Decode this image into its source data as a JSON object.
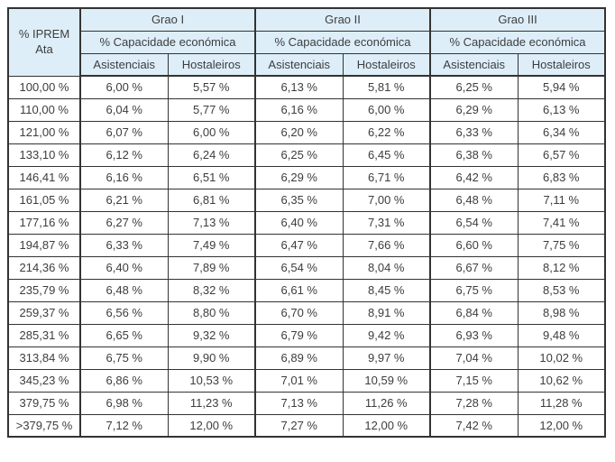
{
  "table": {
    "corner_header": "% IPREM\nAta",
    "groups": [
      {
        "label": "Grao I",
        "subheader": "% Capacidade económica"
      },
      {
        "label": "Grao II",
        "subheader": "% Capacidade económica"
      },
      {
        "label": "Grao III",
        "subheader": "% Capacidade económica"
      }
    ],
    "leaf_columns": [
      "Asistenciais",
      "Hostaleiros"
    ],
    "rows": [
      {
        "iprem": "100,00 %",
        "values": [
          "6,00 %",
          "5,57 %",
          "6,13 %",
          "5,81 %",
          "6,25 %",
          "5,94 %"
        ]
      },
      {
        "iprem": "110,00 %",
        "values": [
          "6,04 %",
          "5,77 %",
          "6,16 %",
          "6,00 %",
          "6,29 %",
          "6,13 %"
        ]
      },
      {
        "iprem": "121,00 %",
        "values": [
          "6,07 %",
          "6,00 %",
          "6,20 %",
          "6,22 %",
          "6,33 %",
          "6,34 %"
        ]
      },
      {
        "iprem": "133,10 %",
        "values": [
          "6,12 %",
          "6,24 %",
          "6,25 %",
          "6,45 %",
          "6,38 %",
          "6,57 %"
        ]
      },
      {
        "iprem": "146,41 %",
        "values": [
          "6,16 %",
          "6,51 %",
          "6,29 %",
          "6,71 %",
          "6,42 %",
          "6,83 %"
        ]
      },
      {
        "iprem": "161,05 %",
        "values": [
          "6,21 %",
          "6,81 %",
          "6,35 %",
          "7,00 %",
          "6,48 %",
          "7,11 %"
        ]
      },
      {
        "iprem": "177,16 %",
        "values": [
          "6,27 %",
          "7,13 %",
          "6,40 %",
          "7,31 %",
          "6,54 %",
          "7,41 %"
        ]
      },
      {
        "iprem": "194,87 %",
        "values": [
          "6,33 %",
          "7,49 %",
          "6,47 %",
          "7,66 %",
          "6,60 %",
          "7,75 %"
        ]
      },
      {
        "iprem": "214,36 %",
        "values": [
          "6,40 %",
          "7,89 %",
          "6,54 %",
          "8,04 %",
          "6,67 %",
          "8,12 %"
        ]
      },
      {
        "iprem": "235,79 %",
        "values": [
          "6,48 %",
          "8,32 %",
          "6,61 %",
          "8,45 %",
          "6,75 %",
          "8,53 %"
        ]
      },
      {
        "iprem": "259,37 %",
        "values": [
          "6,56 %",
          "8,80 %",
          "6,70 %",
          "8,91 %",
          "6,84 %",
          "8,98 %"
        ]
      },
      {
        "iprem": "285,31 %",
        "values": [
          "6,65 %",
          "9,32 %",
          "6,79 %",
          "9,42 %",
          "6,93 %",
          "9,48 %"
        ]
      },
      {
        "iprem": "313,84 %",
        "values": [
          "6,75 %",
          "9,90 %",
          "6,89 %",
          "9,97 %",
          "7,04 %",
          "10,02 %"
        ]
      },
      {
        "iprem": "345,23 %",
        "values": [
          "6,86 %",
          "10,53 %",
          "7,01 %",
          "10,59 %",
          "7,15 %",
          "10,62 %"
        ]
      },
      {
        "iprem": "379,75 %",
        "values": [
          "6,98 %",
          "11,23 %",
          "7,13 %",
          "11,26 %",
          "7,28 %",
          "11,28 %"
        ]
      },
      {
        "iprem": ">379,75 %",
        "values": [
          "7,12 %",
          "12,00 %",
          "7,27 %",
          "12,00 %",
          "7,42 %",
          "12,00 %"
        ]
      }
    ]
  },
  "colors": {
    "header_bg": "#ddeef9",
    "border": "#333333",
    "text": "#3d3d3d"
  }
}
